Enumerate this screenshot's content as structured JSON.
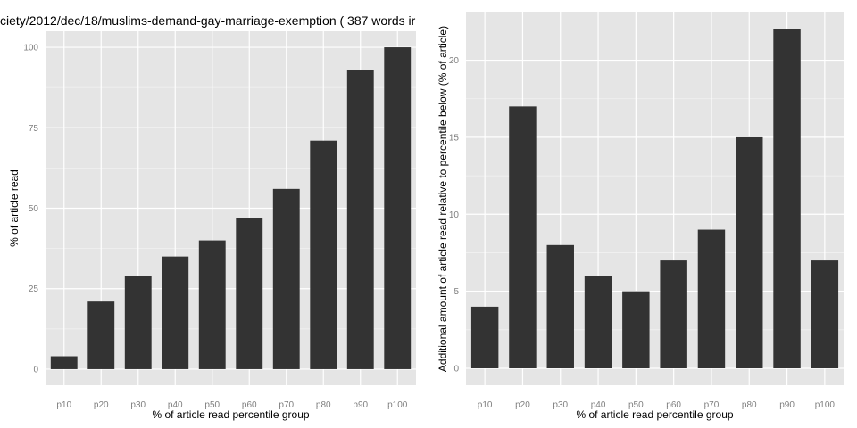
{
  "chart_data": [
    {
      "type": "bar",
      "title": "ciety/2012/dec/18/muslims-demand-gay-marriage-exemption ( 387 words ir",
      "xlabel": "% of article read percentile group",
      "ylabel": "% of article read",
      "categories": [
        "p10",
        "p20",
        "p30",
        "p40",
        "p50",
        "p60",
        "p70",
        "p80",
        "p90",
        "p100"
      ],
      "values": [
        4,
        21,
        29,
        35,
        40,
        47,
        56,
        71,
        93,
        100
      ],
      "ylim": [
        -5,
        105
      ],
      "yticks": [
        0,
        25,
        50,
        75,
        100
      ],
      "grid": true,
      "colors": {
        "panel": "#e5e5e5",
        "grid_major": "#ffffff",
        "grid_minor": "#f2f2f2",
        "bar": "#333333"
      }
    },
    {
      "type": "bar",
      "title": "",
      "xlabel": "% of article read percentile group",
      "ylabel": "Additional amount of article read relative to percentile below (% of article)",
      "categories": [
        "p10",
        "p20",
        "p30",
        "p40",
        "p50",
        "p60",
        "p70",
        "p80",
        "p90",
        "p100"
      ],
      "values": [
        4,
        17,
        8,
        6,
        5,
        7,
        9,
        15,
        22,
        7
      ],
      "ylim": [
        -1.1,
        23.1
      ],
      "yticks": [
        0,
        5,
        10,
        15,
        20
      ],
      "grid": true,
      "colors": {
        "panel": "#e5e5e5",
        "grid_major": "#ffffff",
        "grid_minor": "#f2f2f2",
        "bar": "#333333"
      }
    }
  ]
}
